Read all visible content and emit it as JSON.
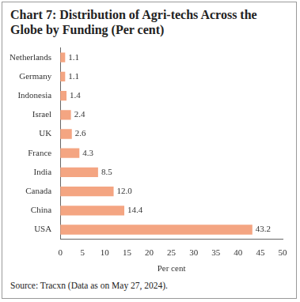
{
  "chart_data": {
    "type": "bar",
    "orientation": "horizontal",
    "title": "Chart 7: Distribution of Agri-techs Across the Globe by Funding (Per cent)",
    "x_label": "Per cent",
    "source": "Source: Tracxn (Data as on May 27, 2024).",
    "categories": [
      "Netherlands",
      "Germany",
      "Indonesia",
      "Israel",
      "UK",
      "France",
      "India",
      "Canada",
      "China",
      "USA"
    ],
    "values": [
      1.1,
      1.1,
      1.4,
      2.4,
      2.6,
      4.3,
      8.5,
      12.0,
      14.4,
      43.2
    ],
    "value_labels": [
      "1.1",
      "1.1",
      "1.4",
      "2.4",
      "2.6",
      "4.3",
      "8.5",
      "12.0",
      "14.4",
      "43.2"
    ],
    "color": "#f4a582",
    "xlim": [
      0,
      50
    ],
    "xticks": [
      0,
      5,
      10,
      15,
      20,
      25,
      30,
      35,
      40,
      45,
      50
    ],
    "grid": false,
    "data_labels": true
  }
}
